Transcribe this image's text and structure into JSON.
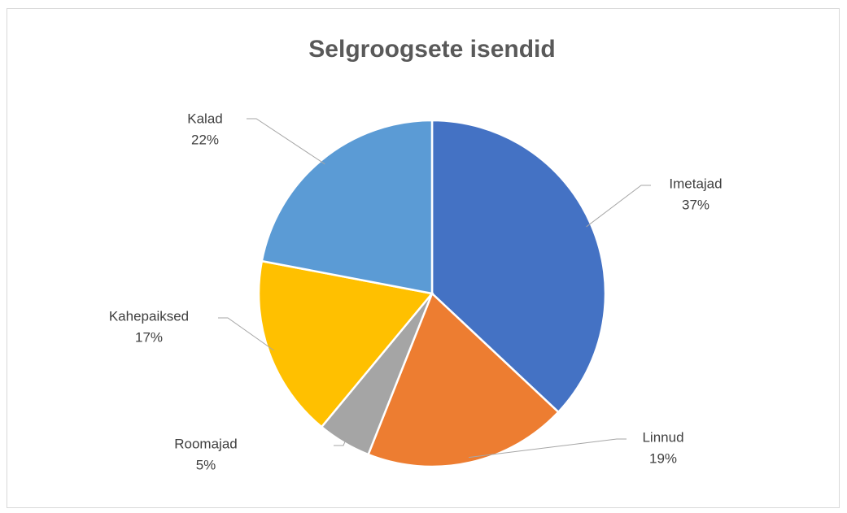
{
  "chart_data": {
    "type": "pie",
    "title": "Selgroogsete isendid",
    "categories": [
      "Imetajad",
      "Linnud",
      "Roomajad",
      "Kahepaiksed",
      "Kalad"
    ],
    "values": [
      37,
      19,
      5,
      17,
      22
    ],
    "value_labels": [
      "37%",
      "19%",
      "5%",
      "17%",
      "22%"
    ],
    "colors": [
      "#4472c4",
      "#ed7d31",
      "#a5a5a5",
      "#ffc000",
      "#5b9bd5"
    ]
  }
}
